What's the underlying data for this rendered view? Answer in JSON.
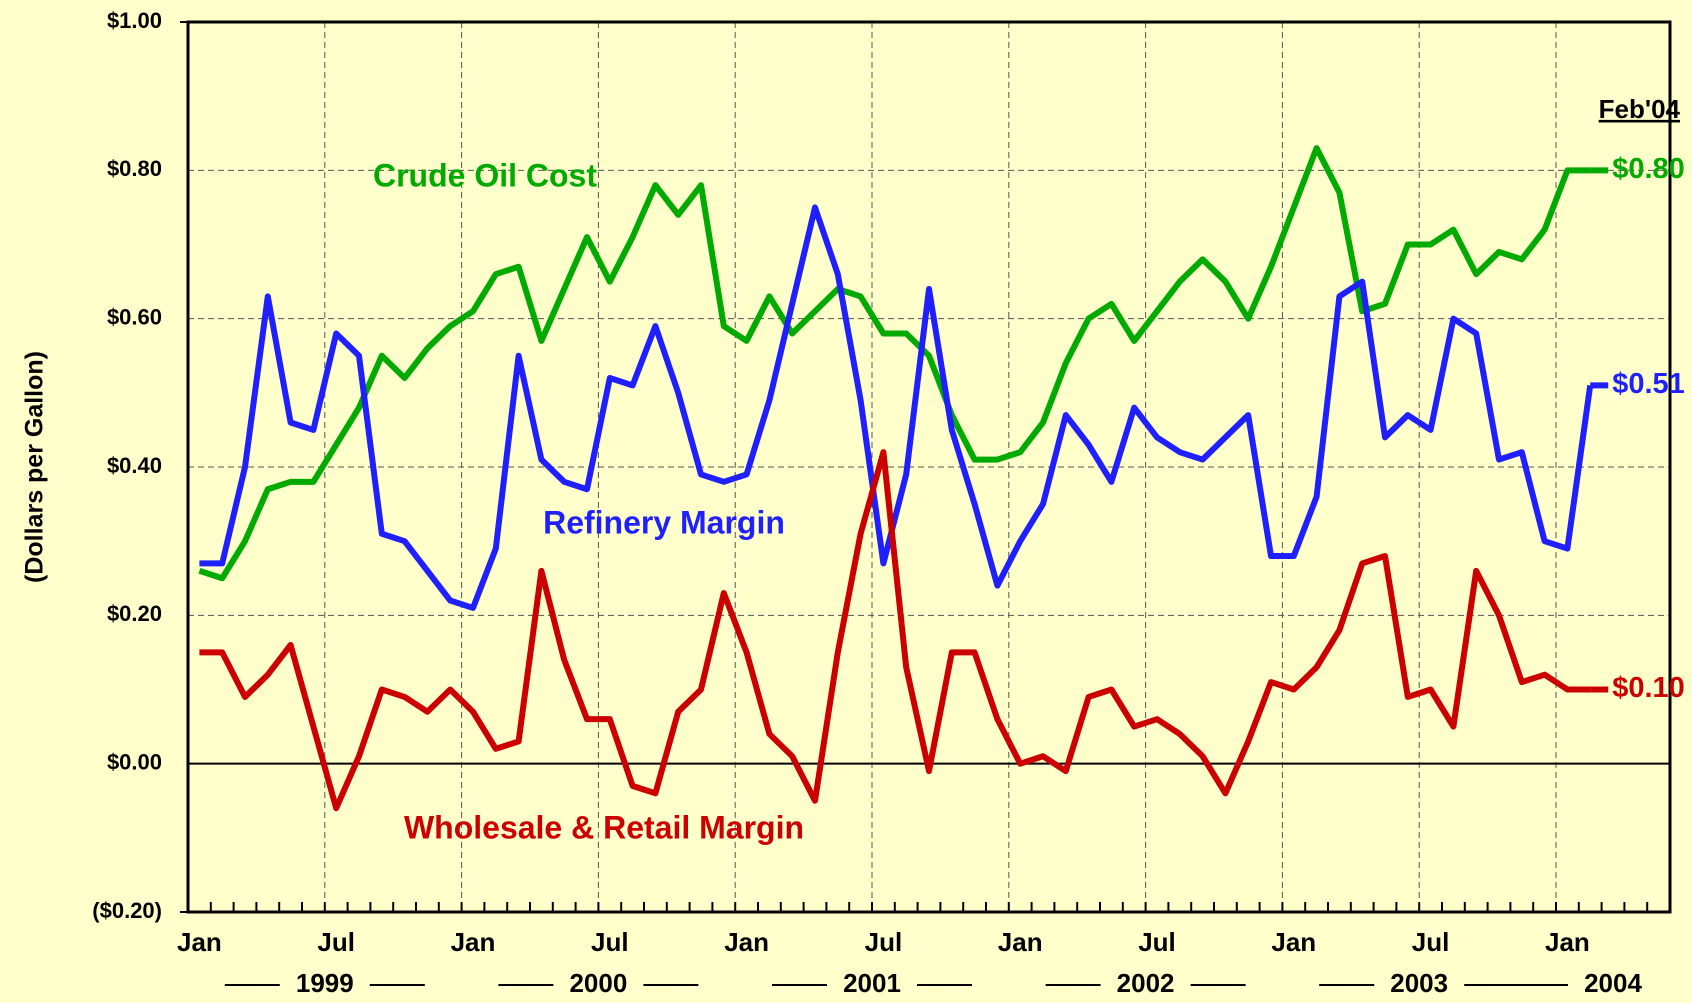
{
  "chart_data": {
    "type": "line",
    "y_axis_label": "(Dollars per Gallon)",
    "annotation": "Feb'04",
    "categories": [
      "Jan",
      null,
      null,
      null,
      null,
      null,
      "Jul",
      null,
      null,
      null,
      null,
      null,
      "Jan",
      null,
      null,
      null,
      null,
      null,
      "Jul",
      null,
      null,
      null,
      null,
      null,
      "Jan",
      null,
      null,
      null,
      null,
      null,
      "Jul",
      null,
      null,
      null,
      null,
      null,
      "Jan",
      null,
      null,
      null,
      null,
      null,
      "Jul",
      null,
      null,
      null,
      null,
      null,
      "Jan",
      null,
      null,
      null,
      null,
      null,
      "Jul",
      null,
      null,
      null,
      null,
      null,
      "Jan",
      null,
      null,
      null,
      null
    ],
    "years": [
      "1999",
      "2000",
      "2001",
      "2002",
      "2003",
      "2004"
    ],
    "series": [
      {
        "name": "Crude Oil Cost",
        "color": "#00aa00",
        "end_label": "$0.80",
        "values": [
          0.26,
          0.25,
          0.3,
          0.37,
          0.38,
          0.38,
          0.43,
          0.48,
          0.55,
          0.52,
          0.56,
          0.59,
          0.61,
          0.66,
          0.67,
          0.57,
          0.64,
          0.71,
          0.65,
          0.71,
          0.78,
          0.74,
          0.78,
          0.59,
          0.57,
          0.63,
          0.58,
          0.61,
          0.64,
          0.63,
          0.58,
          0.58,
          0.55,
          0.47,
          0.41,
          0.41,
          0.42,
          0.46,
          0.54,
          0.6,
          0.62,
          0.57,
          0.61,
          0.65,
          0.68,
          0.65,
          0.6,
          0.67,
          0.75,
          0.83,
          0.77,
          0.61,
          0.62,
          0.7,
          0.7,
          0.72,
          0.66,
          0.69,
          0.68,
          0.72,
          0.8,
          0.8,
          null,
          null,
          null
        ]
      },
      {
        "name": "Refinery Margin",
        "color": "#1f1fff",
        "end_label": "$0.51",
        "values": [
          0.27,
          0.27,
          0.4,
          0.63,
          0.46,
          0.45,
          0.58,
          0.55,
          0.31,
          0.3,
          0.26,
          0.22,
          0.21,
          0.29,
          0.55,
          0.41,
          0.38,
          0.37,
          0.52,
          0.51,
          0.59,
          0.5,
          0.39,
          0.38,
          0.39,
          0.49,
          0.62,
          0.75,
          0.66,
          0.49,
          0.27,
          0.39,
          0.64,
          0.45,
          0.35,
          0.24,
          0.3,
          0.35,
          0.47,
          0.43,
          0.38,
          0.48,
          0.44,
          0.42,
          0.41,
          0.44,
          0.47,
          0.28,
          0.28,
          0.36,
          0.63,
          0.65,
          0.44,
          0.47,
          0.45,
          0.6,
          0.58,
          0.41,
          0.42,
          0.3,
          0.29,
          0.51,
          null,
          null,
          null
        ]
      },
      {
        "name": "Wholesale & Retail Margin",
        "color": "#cc0000",
        "end_label": "$0.10",
        "values": [
          0.15,
          0.15,
          0.09,
          0.12,
          0.16,
          0.05,
          -0.06,
          0.01,
          0.1,
          0.09,
          0.07,
          0.1,
          0.07,
          0.02,
          0.03,
          0.26,
          0.14,
          0.06,
          0.06,
          -0.03,
          -0.04,
          0.07,
          0.1,
          0.23,
          0.15,
          0.04,
          0.01,
          -0.05,
          0.15,
          0.31,
          0.42,
          0.13,
          -0.01,
          0.15,
          0.15,
          0.06,
          0.0,
          0.01,
          -0.01,
          0.09,
          0.1,
          0.05,
          0.06,
          0.04,
          0.01,
          -0.04,
          0.03,
          0.11,
          0.1,
          0.13,
          0.18,
          0.27,
          0.28,
          0.09,
          0.1,
          0.05,
          0.26,
          0.2,
          0.11,
          0.12,
          0.1,
          0.1,
          null,
          null,
          null
        ]
      }
    ],
    "ylim": [
      -0.2,
      1.0
    ],
    "yticks": [
      {
        "value": -0.2,
        "label": "($0.20)"
      },
      {
        "value": 0,
        "label": "$0.00"
      },
      {
        "value": 0.2,
        "label": "$0.20"
      },
      {
        "value": 0.4,
        "label": "$0.40"
      },
      {
        "value": 0.6,
        "label": "$0.60"
      },
      {
        "value": 0.8,
        "label": "$0.80"
      },
      {
        "value": 1.0,
        "label": "$1.00"
      }
    ],
    "grid": true
  }
}
